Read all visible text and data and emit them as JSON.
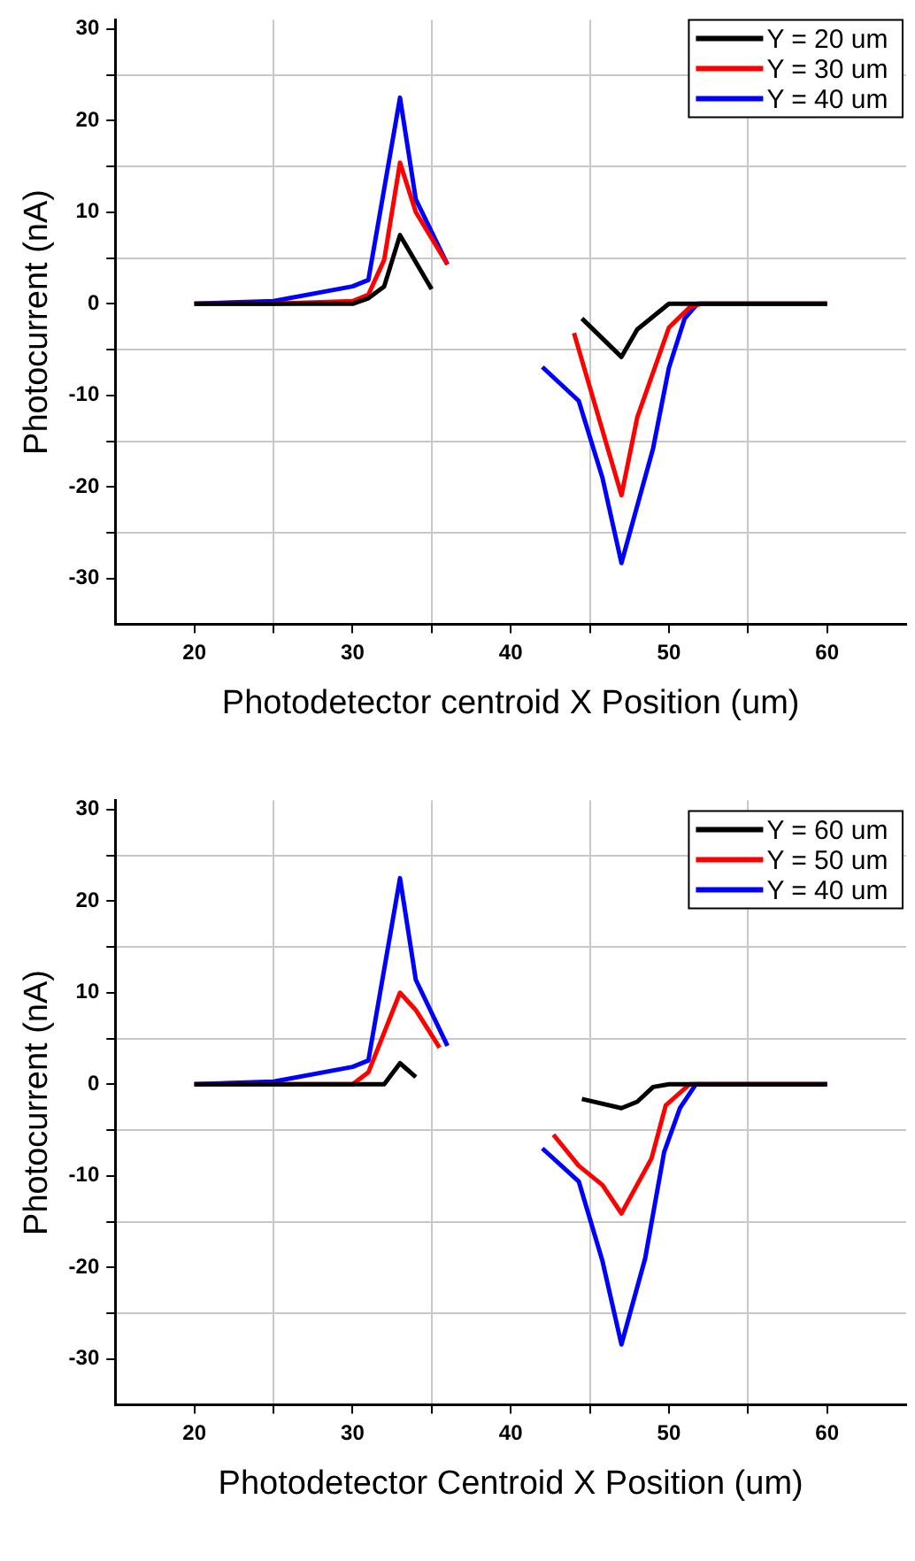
{
  "chart_data": [
    {
      "type": "line",
      "xlabel": "Photodetector centroid X Position (um)",
      "ylabel": "Photocurrent (nA)",
      "xlim": [
        15,
        65
      ],
      "ylim": [
        -35,
        31
      ],
      "xticks": [
        20,
        {
          "value": 25,
          "label": null
        },
        30,
        {
          "value": 35,
          "label": null
        },
        40,
        {
          "value": 45,
          "label": null
        },
        50,
        {
          "value": 55,
          "label": null
        },
        60
      ],
      "yticks": [
        {
          "value": -25,
          "label": null
        },
        -30,
        -20,
        {
          "value": -15,
          "label": null
        },
        -10,
        {
          "value": -5,
          "label": null
        },
        0,
        {
          "value": 5,
          "label": null
        },
        10,
        {
          "value": 15,
          "label": null
        },
        20,
        {
          "value": 25,
          "label": null
        },
        30
      ],
      "grid": true,
      "legend": "top right",
      "marker": "none",
      "line_style": "solid",
      "series": [
        {
          "name": "Y = 20 um",
          "color": "#000000",
          "x": [
            20,
            25,
            30,
            31,
            32,
            33,
            35,
            null,
            44.5,
            47,
            48,
            50,
            52,
            60
          ],
          "values": [
            0,
            0,
            0,
            0.6,
            1.9,
            7.5,
            1.6,
            null,
            -1.6,
            -5.8,
            -2.8,
            0,
            0,
            0
          ]
        },
        {
          "name": "Y = 30 um",
          "color": "#ff0000",
          "x": [
            20,
            25,
            30,
            31,
            32,
            33,
            34,
            36,
            null,
            44,
            47,
            48,
            50,
            51.3,
            52,
            60
          ],
          "values": [
            0,
            0,
            0.3,
            1,
            4.8,
            15.4,
            10,
            4.3,
            null,
            -3.2,
            -20.9,
            -12.4,
            -2.6,
            -0.4,
            0,
            0
          ]
        },
        {
          "name": "Y = 40 um",
          "color": "#0000ff",
          "x": [
            20,
            25,
            30,
            31,
            33,
            34,
            36,
            null,
            42,
            44.3,
            45.8,
            47,
            49,
            50,
            51,
            51.8,
            60
          ],
          "values": [
            0,
            0.3,
            1.9,
            2.6,
            22.5,
            11.4,
            4.3,
            null,
            -6.9,
            -10.6,
            -19,
            -28.3,
            -15.8,
            -7,
            -1.6,
            0,
            0
          ]
        }
      ]
    },
    {
      "type": "line",
      "xlabel": "Photodetector Centroid X Position (um)",
      "ylabel": "Photocurrent (nA)",
      "xlim": [
        15,
        65
      ],
      "ylim": [
        -35,
        31
      ],
      "xticks": [
        20,
        {
          "value": 25,
          "label": null
        },
        30,
        {
          "value": 35,
          "label": null
        },
        40,
        {
          "value": 45,
          "label": null
        },
        50,
        {
          "value": 55,
          "label": null
        },
        60
      ],
      "yticks": [
        {
          "value": -25,
          "label": null
        },
        -30,
        -20,
        {
          "value": -15,
          "label": null
        },
        -10,
        {
          "value": -5,
          "label": null
        },
        0,
        {
          "value": 5,
          "label": null
        },
        10,
        {
          "value": 15,
          "label": null
        },
        20,
        {
          "value": 25,
          "label": null
        },
        30
      ],
      "grid": true,
      "legend": "top right",
      "marker": "none",
      "line_style": "solid",
      "series": [
        {
          "name": "Y = 60 um",
          "color": "#000000",
          "x": [
            20,
            25,
            30,
            32,
            33,
            34,
            null,
            44.5,
            47,
            48,
            49,
            50,
            52,
            60
          ],
          "values": [
            0,
            0,
            0,
            0,
            2.3,
            0.8,
            null,
            -1.6,
            -2.6,
            -1.9,
            -0.3,
            0,
            0,
            0
          ]
        },
        {
          "name": "Y = 50 um",
          "color": "#ff0000",
          "x": [
            20,
            25,
            30,
            31,
            33,
            34,
            35.5,
            null,
            42.7,
            44.3,
            45.8,
            47,
            48.9,
            49.8,
            51.3,
            52,
            60
          ],
          "values": [
            0,
            0,
            0,
            1.3,
            10,
            8.1,
            4,
            null,
            -5.5,
            -8.9,
            -11,
            -14.1,
            -8.1,
            -2.3,
            0,
            0,
            0
          ]
        },
        {
          "name": "Y = 40 um",
          "color": "#0000ff",
          "x": [
            20,
            25,
            30,
            31,
            33,
            34,
            36,
            null,
            42,
            44.3,
            45.8,
            47,
            48.5,
            49.7,
            50.7,
            51.7,
            60
          ],
          "values": [
            0,
            0.3,
            1.9,
            2.6,
            22.5,
            11.4,
            4.2,
            null,
            -7,
            -10.6,
            -19.3,
            -28.4,
            -19,
            -7.4,
            -2.6,
            0,
            0
          ]
        }
      ]
    }
  ]
}
